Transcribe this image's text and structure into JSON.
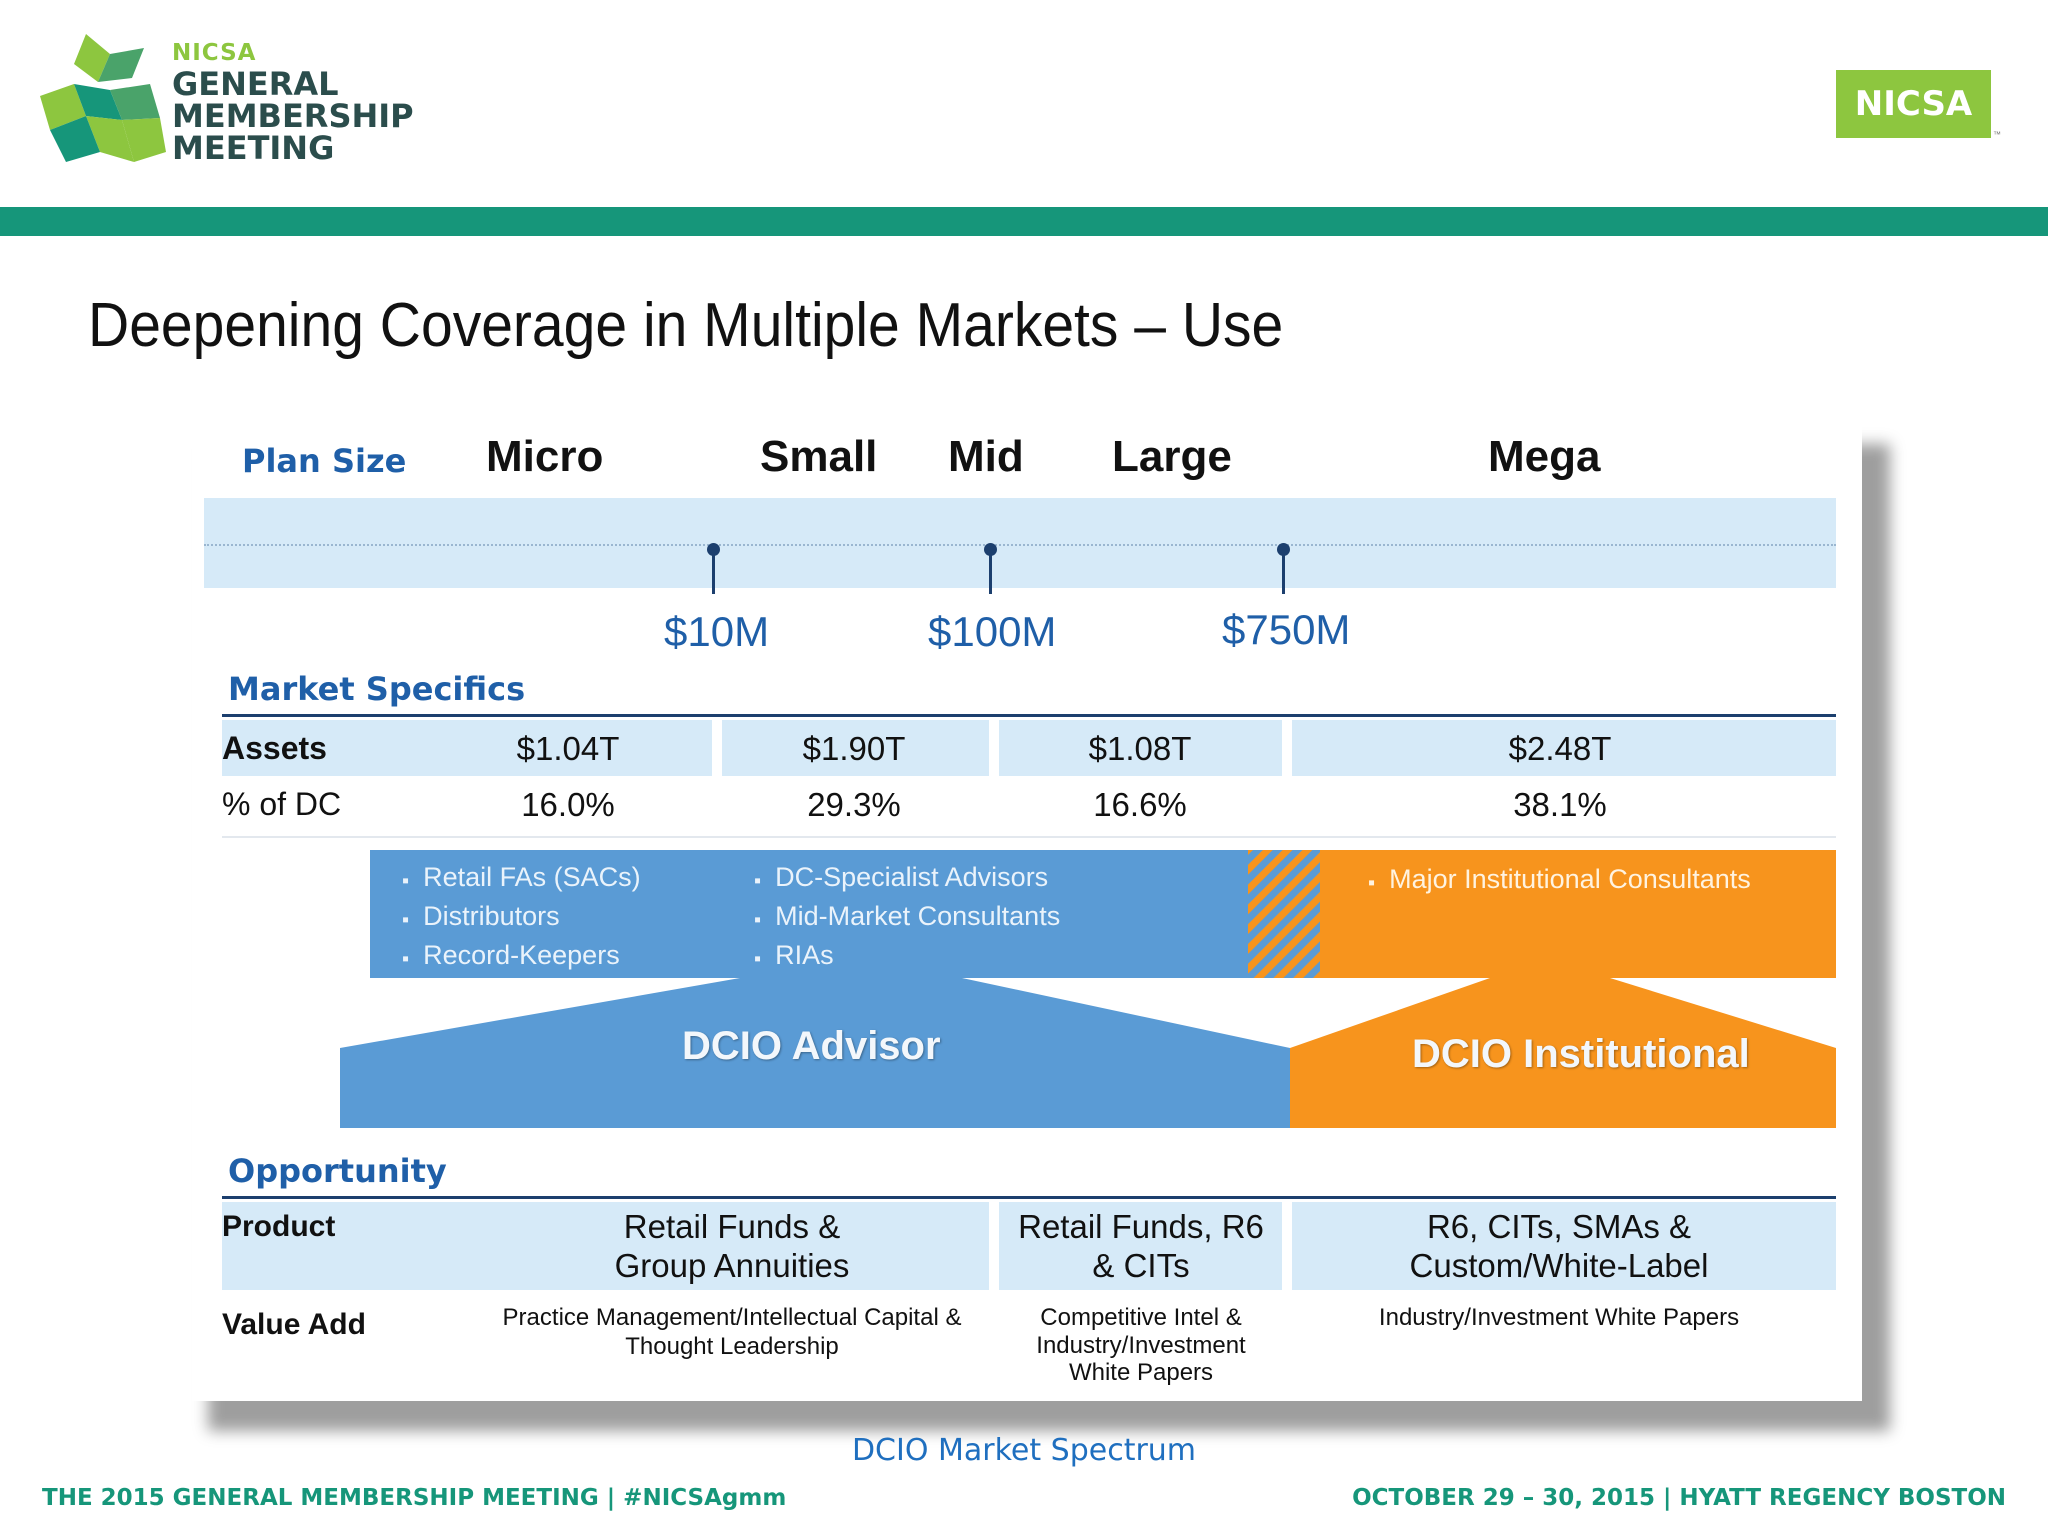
{
  "header": {
    "logo_small": "NICSA",
    "logo_line1": "GENERAL",
    "logo_line2": "MEMBERSHIP",
    "logo_line3": "MEETING",
    "badge": "NICSA",
    "tm": "™"
  },
  "slide_title": "Deepening Coverage in Multiple Markets – Use",
  "figure": {
    "plan_size_label": "Plan Size",
    "plan_columns": [
      "Micro",
      "Small",
      "Mid",
      "Large",
      "Mega"
    ],
    "thresholds": [
      "$10M",
      "$100M",
      "$750M"
    ],
    "market_specifics_label": "Market Specifics",
    "assets": {
      "label": "Assets",
      "values": [
        "$1.04T",
        "$1.90T",
        "$1.08T",
        "$2.48T"
      ]
    },
    "pct_dc": {
      "label": "% of DC",
      "values": [
        "16.0%",
        "29.3%",
        "16.6%",
        "38.1%"
      ]
    },
    "advisor_bullets_col1": [
      "Retail FAs (SACs)",
      "Distributors",
      "Record-Keepers"
    ],
    "advisor_bullets_col2": [
      "DC-Specialist Advisors",
      "Mid-Market Consultants",
      "RIAs"
    ],
    "institutional_bullets": [
      "Major Institutional Consultants"
    ],
    "dcio_advisor": "DCIO Advisor",
    "dcio_institutional": "DCIO Institutional",
    "opportunity_label": "Opportunity",
    "product": {
      "label": "Product",
      "col1_line1": "Retail Funds &",
      "col1_line2": "Group Annuities",
      "col2_line1": "Retail Funds, R6",
      "col2_line2": "& CITs",
      "col3_line1": "R6, CITs, SMAs &",
      "col3_line2": "Custom/White-Label"
    },
    "value_add": {
      "label": "Value Add",
      "col1_line1": "Practice Management/Intellectual Capital &",
      "col1_line2": "Thought Leadership",
      "col2_line1": "Competitive Intel &",
      "col2_line2": "Industry/Investment",
      "col2_line3": "White Papers",
      "col3_line1": "Industry/Investment White Papers"
    },
    "colors": {
      "advisor_blue": "#5a9bd5",
      "institutional_orange": "#f7941d",
      "band_blue": "#d6eaf8"
    }
  },
  "caption": "DCIO Market Spectrum",
  "footer": {
    "left": "THE 2015 GENERAL MEMBERSHIP MEETING  |  #NICSAgmm",
    "right": "OCTOBER 29 – 30, 2015 | HYATT REGENCY BOSTON"
  }
}
